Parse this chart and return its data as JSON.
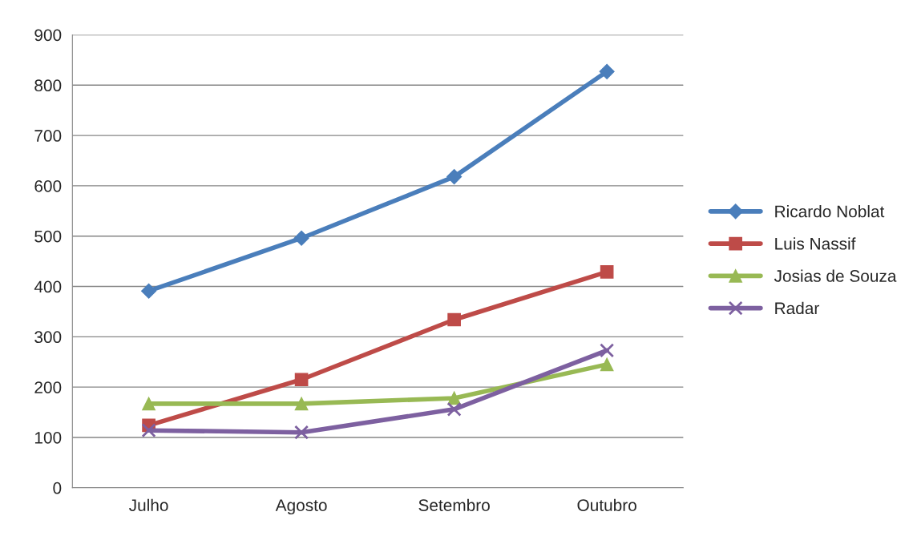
{
  "chart_data": {
    "type": "line",
    "categories": [
      "Julho",
      "Agosto",
      "Setembro",
      "Outubro"
    ],
    "series": [
      {
        "name": "Ricardo Noblat",
        "color": "#4a7ebb",
        "marker": "diamond",
        "values": [
          391,
          496,
          618,
          827
        ]
      },
      {
        "name": "Luis Nassif",
        "color": "#be4b48",
        "marker": "square",
        "values": [
          124,
          215,
          334,
          429
        ]
      },
      {
        "name": "Josias de Souza",
        "color": "#98b954",
        "marker": "triangle",
        "values": [
          167,
          167,
          178,
          245
        ]
      },
      {
        "name": "Radar",
        "color": "#7d60a0",
        "marker": "cross",
        "values": [
          114,
          110,
          156,
          273
        ]
      }
    ],
    "ylim": [
      0,
      900
    ],
    "yticks": [
      0,
      100,
      200,
      300,
      400,
      500,
      600,
      700,
      800,
      900
    ],
    "grid": "y",
    "legend": "right",
    "line_style": "solid"
  }
}
